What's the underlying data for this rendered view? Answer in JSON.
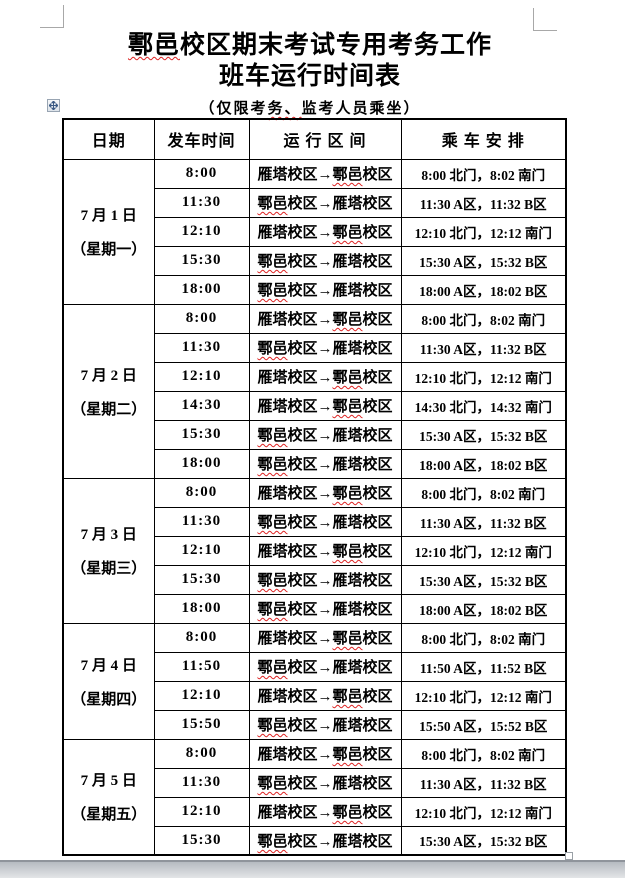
{
  "page": {
    "title_line1": "鄠邑校区期末考试专用考务工作",
    "title_line2": "班车运行时间表",
    "subtitle": "（仅限考务、监考人员乘坐）"
  },
  "spellcheck": {
    "terms": [
      "鄠邑",
      "务、"
    ]
  },
  "table": {
    "headers": [
      "日期",
      "发车时间",
      "运 行 区 间",
      "乘 车 安 排"
    ],
    "blocks": [
      {
        "date": "7 月 1 日",
        "weekday": "（星期一）",
        "rows": [
          {
            "time": "8:00",
            "route": "雁塔校区→鄠邑校区",
            "arrangement": "8:00 北门，8:02 南门"
          },
          {
            "time": "11:30",
            "route": "鄠邑校区→雁塔校区",
            "arrangement": "11:30 A区，11:32 B区"
          },
          {
            "time": "12:10",
            "route": "雁塔校区→鄠邑校区",
            "arrangement": "12:10 北门，12:12 南门"
          },
          {
            "time": "15:30",
            "route": "鄠邑校区→雁塔校区",
            "arrangement": "15:30 A区，15:32 B区"
          },
          {
            "time": "18:00",
            "route": "鄠邑校区→雁塔校区",
            "arrangement": "18:00 A区，18:02 B区"
          }
        ]
      },
      {
        "date": "7 月 2 日",
        "weekday": "（星期二）",
        "rows": [
          {
            "time": "8:00",
            "route": "雁塔校区→鄠邑校区",
            "arrangement": "8:00 北门，8:02 南门"
          },
          {
            "time": "11:30",
            "route": "鄠邑校区→雁塔校区",
            "arrangement": "11:30 A区，11:32 B区"
          },
          {
            "time": "12:10",
            "route": "雁塔校区→鄠邑校区",
            "arrangement": "12:10 北门，12:12 南门"
          },
          {
            "time": "14:30",
            "route": "雁塔校区→鄠邑校区",
            "arrangement": "14:30 北门，14:32 南门"
          },
          {
            "time": "15:30",
            "route": "鄠邑校区→雁塔校区",
            "arrangement": "15:30 A区，15:32 B区"
          },
          {
            "time": "18:00",
            "route": "鄠邑校区→雁塔校区",
            "arrangement": "18:00 A区，18:02 B区"
          }
        ]
      },
      {
        "date": "7 月 3 日",
        "weekday": "（星期三）",
        "rows": [
          {
            "time": "8:00",
            "route": "雁塔校区→鄠邑校区",
            "arrangement": "8:00 北门，8:02 南门"
          },
          {
            "time": "11:30",
            "route": "鄠邑校区→雁塔校区",
            "arrangement": "11:30 A区，11:32 B区"
          },
          {
            "time": "12:10",
            "route": "雁塔校区→鄠邑校区",
            "arrangement": "12:10 北门，12:12 南门"
          },
          {
            "time": "15:30",
            "route": "鄠邑校区→雁塔校区",
            "arrangement": "15:30 A区，15:32 B区"
          },
          {
            "time": "18:00",
            "route": "鄠邑校区→雁塔校区",
            "arrangement": "18:00 A区，18:02 B区"
          }
        ]
      },
      {
        "date": "7 月 4 日",
        "weekday": "（星期四）",
        "rows": [
          {
            "time": "8:00",
            "route": "雁塔校区→鄠邑校区",
            "arrangement": "8:00 北门，8:02 南门"
          },
          {
            "time": "11:50",
            "route": "鄠邑校区→雁塔校区",
            "arrangement": "11:50 A区，11:52 B区"
          },
          {
            "time": "12:10",
            "route": "雁塔校区→鄠邑校区",
            "arrangement": "12:10 北门，12:12 南门"
          },
          {
            "time": "15:50",
            "route": "鄠邑校区→雁塔校区",
            "arrangement": "15:50 A区，15:52 B区"
          }
        ]
      },
      {
        "date": "7 月 5 日",
        "weekday": "（星期五）",
        "rows": [
          {
            "time": "8:00",
            "route": "雁塔校区→鄠邑校区",
            "arrangement": "8:00 北门，8:02 南门"
          },
          {
            "time": "11:30",
            "route": "鄠邑校区→雁塔校区",
            "arrangement": "11:30 A区，11:32 B区"
          },
          {
            "time": "12:10",
            "route": "雁塔校区→鄠邑校区",
            "arrangement": "12:10 北门，12:12 南门"
          },
          {
            "time": "15:30",
            "route": "鄠邑校区→雁塔校区",
            "arrangement": "15:30 A区，15:32 B区"
          }
        ]
      }
    ]
  }
}
